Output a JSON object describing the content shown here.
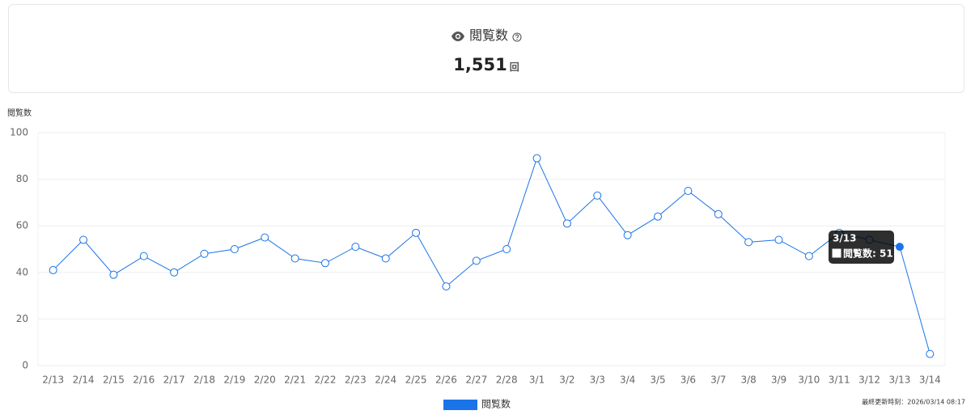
{
  "summary": {
    "title": "閲覧数",
    "value": "1,551",
    "unit": "回"
  },
  "chart_data": {
    "type": "line",
    "ylabel": "閲覧数",
    "categories": [
      "2/13",
      "2/14",
      "2/15",
      "2/16",
      "2/17",
      "2/18",
      "2/19",
      "2/20",
      "2/21",
      "2/22",
      "2/23",
      "2/24",
      "2/25",
      "2/26",
      "2/27",
      "2/28",
      "3/1",
      "3/2",
      "3/3",
      "3/4",
      "3/5",
      "3/6",
      "3/7",
      "3/8",
      "3/9",
      "3/10",
      "3/11",
      "3/12",
      "3/13",
      "3/14"
    ],
    "series": [
      {
        "name": "閲覧数",
        "color": "#1a73e8",
        "values": [
          41,
          54,
          39,
          47,
          40,
          48,
          50,
          55,
          46,
          44,
          51,
          46,
          57,
          34,
          45,
          50,
          89,
          61,
          73,
          56,
          64,
          75,
          65,
          53,
          54,
          47,
          57,
          54,
          51,
          5
        ]
      }
    ],
    "ylim": [
      0,
      100
    ],
    "yticks": [
      0,
      20,
      40,
      60,
      80,
      100
    ],
    "grid": true,
    "legend": "bottom",
    "tooltip": {
      "category": "3/13",
      "text": "閲覧数: 51"
    }
  },
  "footer": {
    "updated": "最終更新時刻：2026/03/14 08:17"
  }
}
